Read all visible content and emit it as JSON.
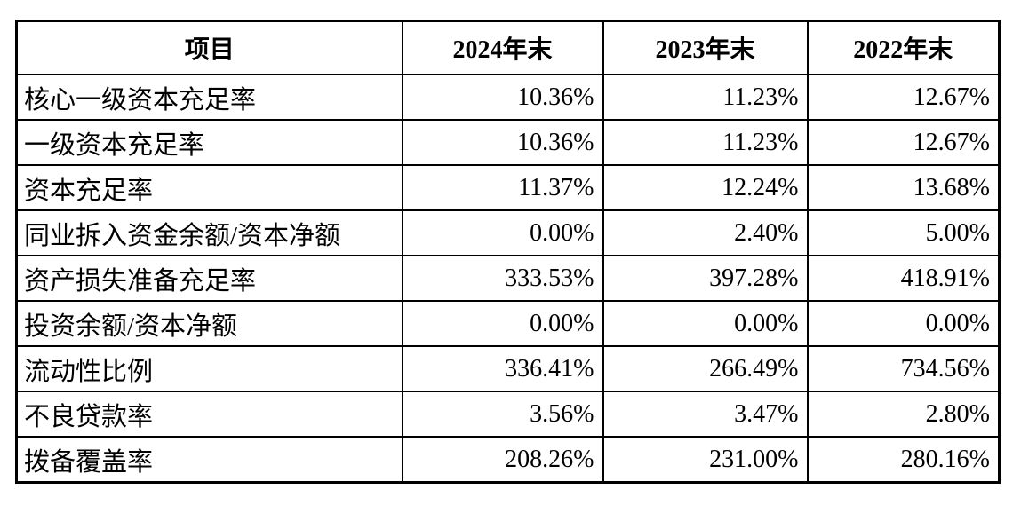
{
  "page": {
    "background": "#ffffff",
    "border_color": "#000000",
    "text_color": "#000000"
  },
  "table": {
    "columns": [
      "项目",
      "2024年末",
      "2023年末",
      "2022年末"
    ],
    "rows": [
      {
        "label": "核心一级资本充足率",
        "values": [
          "10.36%",
          "11.23%",
          "12.67%"
        ]
      },
      {
        "label": "一级资本充足率",
        "values": [
          "10.36%",
          "11.23%",
          "12.67%"
        ]
      },
      {
        "label": "资本充足率",
        "values": [
          "11.37%",
          "12.24%",
          "13.68%"
        ]
      },
      {
        "label": "同业拆入资金余额/资本净额",
        "values": [
          "0.00%",
          "2.40%",
          "5.00%"
        ]
      },
      {
        "label": "资产损失准备充足率",
        "values": [
          "333.53%",
          "397.28%",
          "418.91%"
        ]
      },
      {
        "label": "投资余额/资本净额",
        "values": [
          "0.00%",
          "0.00%",
          "0.00%"
        ]
      },
      {
        "label": "流动性比例",
        "values": [
          "336.41%",
          "266.49%",
          "734.56%"
        ]
      },
      {
        "label": "不良贷款率",
        "values": [
          "3.56%",
          "3.47%",
          "2.80%"
        ]
      },
      {
        "label": "拨备覆盖率",
        "values": [
          "208.26%",
          "231.00%",
          "280.16%"
        ]
      }
    ]
  }
}
